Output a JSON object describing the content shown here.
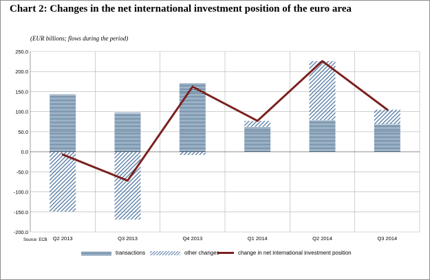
{
  "title": "Chart 2: Changes in the net international investment position of the euro area",
  "subtitle": "(EUR billions; flows during the period)",
  "source": "Source: ECB",
  "colors": {
    "transactions": "#1f4e79",
    "other_changes": "#5b7fa8",
    "line": "#7b2120",
    "grid": "#b0b0b0"
  },
  "chart_data": {
    "type": "bar",
    "categories": [
      "Q2 2013",
      "Q3 2013",
      "Q4 2013",
      "Q1 2014",
      "Q2 2014",
      "Q3 2014"
    ],
    "ylim": [
      -200,
      250
    ],
    "yticks": [
      "250.0",
      "200.0",
      "150.0",
      "100.0",
      "50.0",
      "0.0",
      "-50.0",
      "-100.0",
      "-150.0",
      "-200.0"
    ],
    "ytick_values": [
      250,
      200,
      150,
      100,
      50,
      0,
      -50,
      -100,
      -150,
      -200
    ],
    "grid": true,
    "legend_position": "bottom",
    "series": [
      {
        "name": "transactions",
        "kind": "bar",
        "pattern": "horizontal-lines",
        "values": [
          142,
          97,
          170,
          62,
          79,
          69
        ]
      },
      {
        "name": "other changes",
        "kind": "bar",
        "pattern": "diagonal-hatch",
        "values": [
          -149,
          -169,
          -8,
          15,
          147,
          36
        ]
      },
      {
        "name": "change in net international investment position",
        "kind": "line",
        "values": [
          -7,
          -72,
          162,
          77,
          226,
          105
        ]
      }
    ]
  }
}
